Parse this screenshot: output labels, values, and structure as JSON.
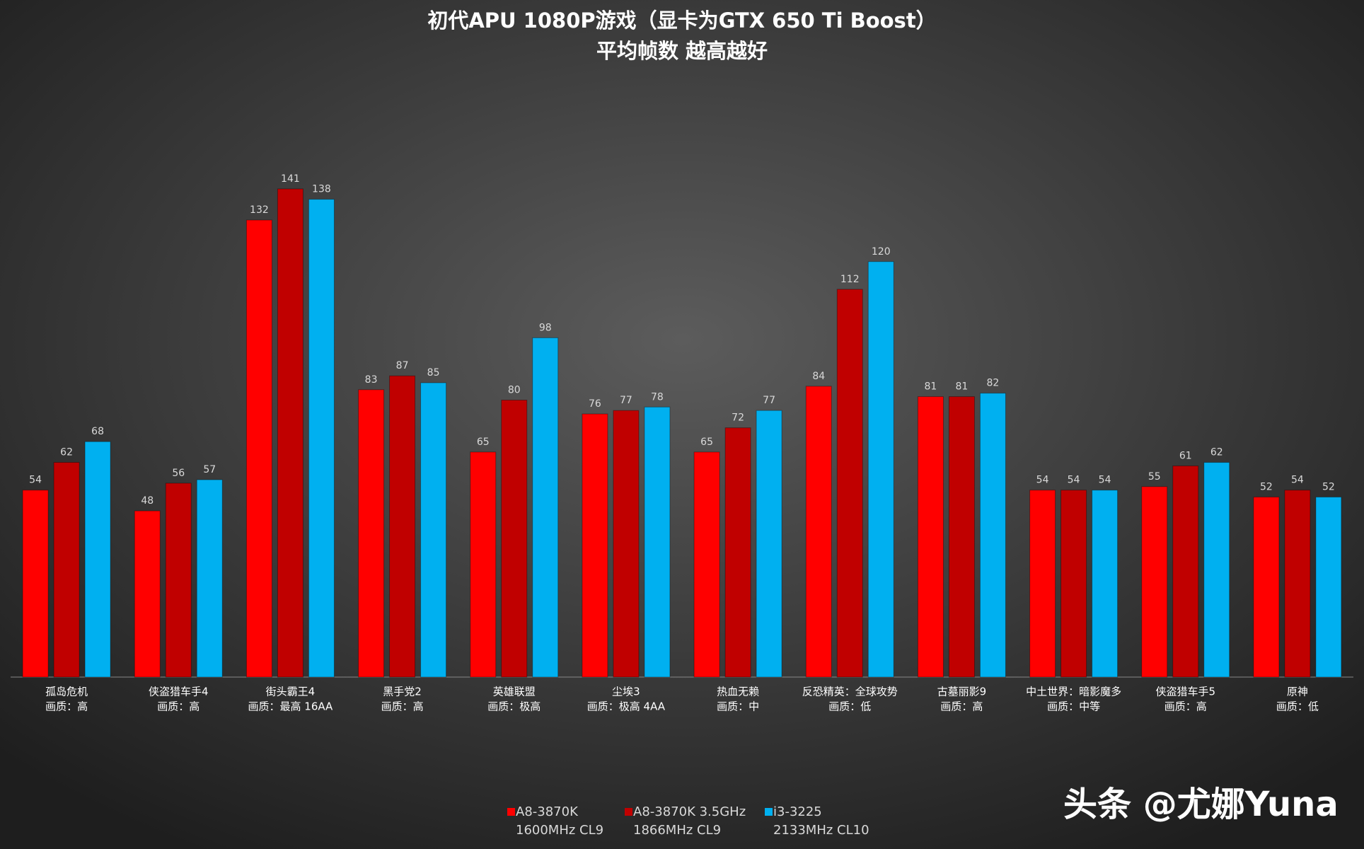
{
  "chart_data": {
    "type": "bar",
    "title": "初代APU 1080P游戏（显卡为GTX 650 Ti Boost）",
    "subtitle": "平均帧数 越高越好",
    "categories": [
      [
        "孤岛危机",
        "画质：高"
      ],
      [
        "侠盗猎车手4",
        "画质：高"
      ],
      [
        "街头霸王4",
        "画质：最高 16AA"
      ],
      [
        "黑手党2",
        "画质：高"
      ],
      [
        "英雄联盟",
        "画质：极高"
      ],
      [
        "尘埃3",
        "画质：极高 4AA"
      ],
      [
        "热血无赖",
        "画质：中"
      ],
      [
        "反恐精英：全球攻势",
        "画质：低"
      ],
      [
        "古墓丽影9",
        "画质：高"
      ],
      [
        "中土世界：暗影魔多",
        "画质：中等"
      ],
      [
        "侠盗猎车手5",
        "画质：高"
      ],
      [
        "原神",
        "画质：低"
      ]
    ],
    "series": [
      {
        "name": [
          "A8-3870K",
          "1600MHz CL9"
        ],
        "color": "#ff0000",
        "values": [
          54,
          48,
          132,
          83,
          65,
          76,
          65,
          84,
          81,
          54,
          55,
          52
        ]
      },
      {
        "name": [
          "A8-3870K 3.5GHz",
          "1866MHz CL9"
        ],
        "color": "#c00000",
        "values": [
          62,
          56,
          141,
          87,
          80,
          77,
          72,
          112,
          81,
          54,
          61,
          54
        ]
      },
      {
        "name": [
          "i3-3225",
          "2133MHz CL10"
        ],
        "color": "#00b0f0",
        "values": [
          68,
          57,
          138,
          85,
          98,
          78,
          77,
          120,
          82,
          54,
          62,
          52
        ]
      }
    ],
    "ylim": [
      0,
      160
    ],
    "watermark": "头条 @尤娜Yuna"
  }
}
